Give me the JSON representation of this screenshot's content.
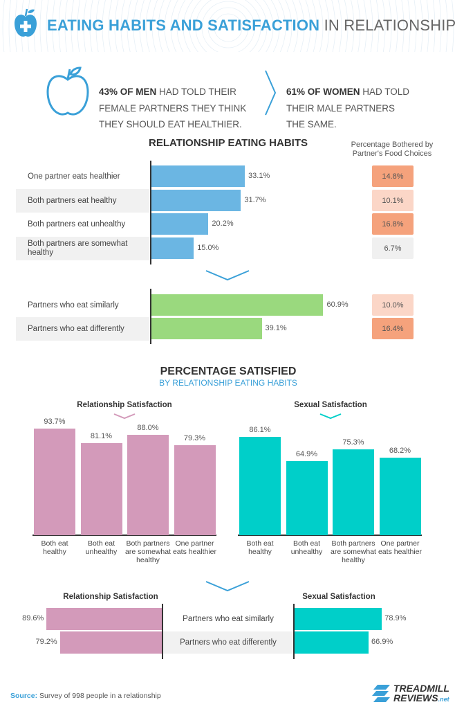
{
  "header": {
    "title_bold": "EATING HABITS AND SATISFACTION",
    "title_light": "IN RELATIONSHIPS",
    "icon": "apple-medical-icon"
  },
  "stats": {
    "men_bold": "43% OF MEN",
    "men_rest": "HAD TOLD THEIR FEMALE PARTNERS THEY THINK THEY SHOULD EAT HEALTHIER.",
    "women_bold": "61% OF WOMEN",
    "women_rest": "HAD TOLD THEIR MALE PARTNERS THE SAME."
  },
  "colors": {
    "blue": "#6bb6e3",
    "green": "#9ad97e",
    "pink": "#d39aba",
    "teal": "#00cfc9",
    "accent": "#3aa0d8",
    "badge_dark": "#f5a27c",
    "badge_light": "#fbd6c7",
    "badge_gray": "#f0f0f0"
  },
  "chart_data": [
    {
      "type": "bar",
      "orientation": "horizontal",
      "title": "RELATIONSHIP EATING HABITS",
      "side_header": "Percentage Bothered by Partner's Food Choices",
      "categories": [
        "One partner eats healthier",
        "Both partners eat healthy",
        "Both partners eat unhealthy",
        "Both partners are somewhat healthy"
      ],
      "values": [
        33.1,
        31.7,
        20.2,
        15.0
      ],
      "labels": [
        "33.1%",
        "31.7%",
        "20.2%",
        "15.0%"
      ],
      "bothered": [
        14.8,
        10.1,
        16.8,
        6.7
      ],
      "bothered_labels": [
        "14.8%",
        "10.1%",
        "16.8%",
        "6.7%"
      ],
      "bothered_levels": [
        "dark",
        "light",
        "dark",
        "gray"
      ]
    },
    {
      "type": "bar",
      "orientation": "horizontal",
      "categories": [
        "Partners who eat similarly",
        "Partners who eat differently"
      ],
      "values": [
        60.9,
        39.1
      ],
      "labels": [
        "60.9%",
        "39.1%"
      ],
      "bothered": [
        10.0,
        16.4
      ],
      "bothered_labels": [
        "10.0%",
        "16.4%"
      ],
      "bothered_levels": [
        "light",
        "dark"
      ]
    },
    {
      "type": "bar",
      "section_title": "PERCENTAGE SATISFIED",
      "section_subtitle": "BY RELATIONSHIP EATING HABITS",
      "title": "Relationship Satisfaction",
      "categories": [
        "Both eat healthy",
        "Both eat unhealthy",
        "Both partners are somewhat healthy",
        "One partner eats healthier"
      ],
      "values": [
        93.7,
        81.1,
        88.0,
        79.3
      ],
      "labels": [
        "93.7%",
        "81.1%",
        "88.0%",
        "79.3%"
      ]
    },
    {
      "type": "bar",
      "title": "Sexual Satisfaction",
      "categories": [
        "Both eat healthy",
        "Both eat unhealthy",
        "Both partners are somewhat healthy",
        "One partner eats healthier"
      ],
      "values": [
        86.1,
        64.9,
        75.3,
        68.2
      ],
      "labels": [
        "86.1%",
        "64.9%",
        "75.3%",
        "68.2%"
      ]
    },
    {
      "type": "bar",
      "orientation": "horizontal-diverging",
      "left_title": "Relationship Satisfaction",
      "right_title": "Sexual Satisfaction",
      "categories": [
        "Partners who eat similarly",
        "Partners who eat differently"
      ],
      "left_values": [
        89.6,
        79.2
      ],
      "left_labels": [
        "89.6%",
        "79.2%"
      ],
      "right_values": [
        78.9,
        66.9
      ],
      "right_labels": [
        "78.9%",
        "66.9%"
      ]
    }
  ],
  "footer": {
    "source_label": "Source:",
    "source_text": "Survey of 998 people in a relationship",
    "logo_line1": "TREADMILL",
    "logo_line2": "REVIEWS",
    "logo_suffix": ".net"
  }
}
